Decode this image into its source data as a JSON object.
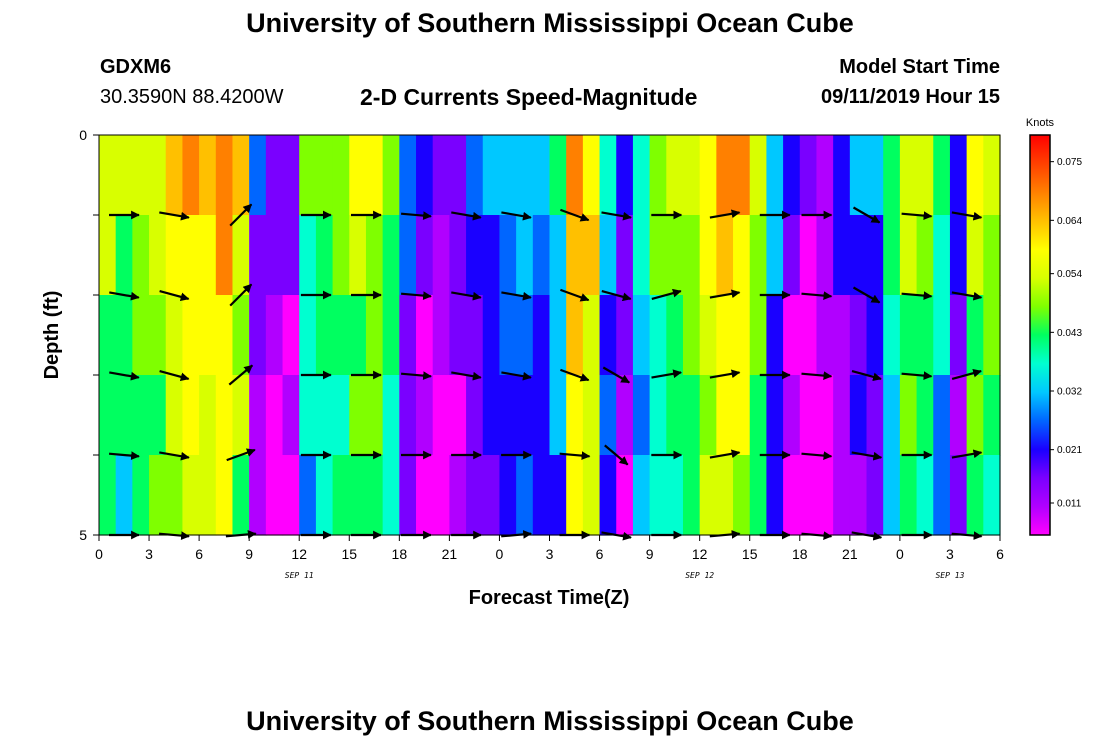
{
  "header": {
    "title_top": "University of Southern Mississippi Ocean Cube",
    "title_bottom": "University of Southern Mississippi Ocean Cube",
    "station_id": "GDXM6",
    "station_coords": "30.3590N 88.4200W",
    "model_label": "Model Start Time",
    "model_time": "09/11/2019 Hour 15"
  },
  "chart_data": {
    "type": "heatmap",
    "title": "2-D Currents Speed-Magnitude",
    "xlabel": "Forecast Time(Z)",
    "ylabel": "Depth (ft)",
    "x_ticks": [
      "0",
      "3",
      "6",
      "9",
      "12",
      "15",
      "18",
      "21",
      "0",
      "3",
      "6",
      "9",
      "12",
      "15",
      "18",
      "21",
      "0",
      "3",
      "6"
    ],
    "x_range_hours": [
      0,
      54
    ],
    "y_ticks": [
      "0",
      "5"
    ],
    "y_range": [
      0,
      5
    ],
    "depth_levels": 5,
    "day_labels": [
      {
        "text": "SEP 11",
        "hour": 12
      },
      {
        "text": "SEP 12",
        "hour": 36
      },
      {
        "text": "SEP 13",
        "hour": 51
      }
    ],
    "colorbar": {
      "unit": "Knots",
      "ticks": [
        "0.075",
        "0.064",
        "0.054",
        "0.043",
        "0.032",
        "0.021",
        "0.011"
      ],
      "range": [
        0.005,
        0.08
      ],
      "colors": [
        "#ff00ff",
        "#b100ff",
        "#7a00ff",
        "#1a00ff",
        "#0066ff",
        "#00c8ff",
        "#00ffd0",
        "#00ff60",
        "#7fff00",
        "#d8ff00",
        "#ffff00",
        "#ffc000",
        "#ff8000",
        "#ff4000",
        "#ff0000"
      ]
    },
    "speed_by_hour": [
      0.048,
      0.045,
      0.05,
      0.052,
      0.058,
      0.062,
      0.06,
      0.064,
      0.055,
      0.02,
      0.014,
      0.015,
      0.04,
      0.044,
      0.046,
      0.05,
      0.052,
      0.045,
      0.025,
      0.016,
      0.014,
      0.018,
      0.022,
      0.026,
      0.03,
      0.032,
      0.028,
      0.035,
      0.064,
      0.058,
      0.03,
      0.018,
      0.036,
      0.045,
      0.048,
      0.05,
      0.058,
      0.062,
      0.06,
      0.05,
      0.03,
      0.016,
      0.01,
      0.012,
      0.02,
      0.024,
      0.026,
      0.04,
      0.05,
      0.048,
      0.038,
      0.022,
      0.05,
      0.048
    ],
    "row_offsets": [
      0.004,
      0.0,
      -0.004,
      -0.006,
      -0.008
    ],
    "arrow_hours": [
      1.5,
      4.5,
      8.5,
      13,
      16,
      19,
      22,
      25,
      28.5,
      31,
      34,
      37.5,
      40.5,
      43,
      46,
      49,
      52
    ],
    "arrow_angles_deg": [
      [
        0,
        10,
        -45,
        0,
        0,
        5,
        10,
        10,
        20,
        10,
        0,
        -10,
        0,
        0,
        30,
        5,
        10
      ],
      [
        10,
        15,
        -45,
        0,
        0,
        5,
        10,
        10,
        20,
        15,
        -15,
        -10,
        0,
        5,
        30,
        5,
        10
      ],
      [
        10,
        15,
        -40,
        0,
        0,
        5,
        10,
        10,
        20,
        30,
        -10,
        -10,
        0,
        5,
        15,
        5,
        -15
      ],
      [
        5,
        10,
        -20,
        0,
        0,
        0,
        0,
        0,
        5,
        40,
        0,
        -10,
        0,
        5,
        10,
        0,
        -10
      ],
      [
        0,
        5,
        -5,
        0,
        0,
        0,
        0,
        -5,
        0,
        10,
        0,
        -5,
        0,
        5,
        10,
        0,
        5
      ]
    ]
  }
}
